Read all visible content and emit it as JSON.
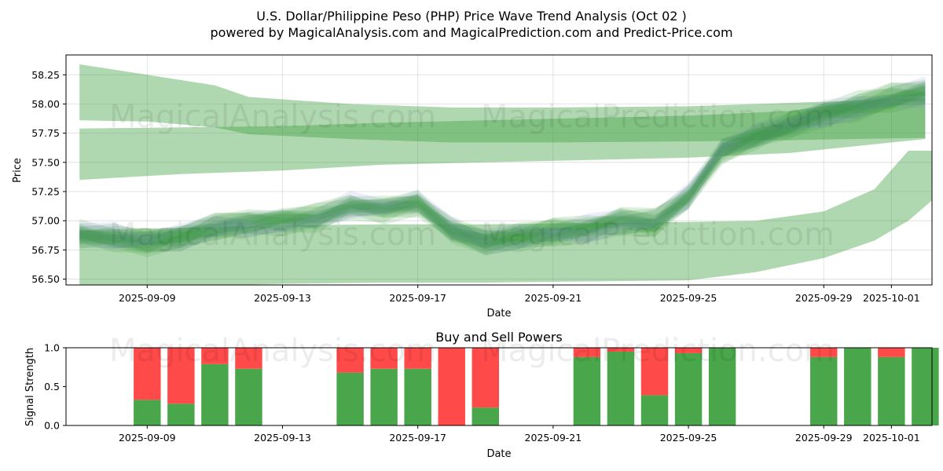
{
  "chart_title_line1": "U.S. Dollar/Philippine Peso (PHP) Price Wave Trend Analysis (Oct 02 )",
  "chart_title_line2": "powered by MagicalAnalysis.com and MagicalPrediction.com and Predict-Price.com",
  "watermarks": [
    "MagicalAnalysis.com",
    "MagicalPrediction.com"
  ],
  "colors": {
    "green_band": "#3a9e3a",
    "blue_band": "#8080e6",
    "buy": "#4aa64a",
    "sell": "#ff4a4a"
  },
  "chart_data": [
    {
      "type": "area",
      "title": "",
      "xlabel": "Date",
      "ylabel": "Price",
      "xlim_days": [
        -0.4,
        25.2
      ],
      "ylim": [
        56.45,
        58.42
      ],
      "x_ticks": [
        {
          "day": 2,
          "label": "2025-09-09"
        },
        {
          "day": 6,
          "label": "2025-09-13"
        },
        {
          "day": 10,
          "label": "2025-09-17"
        },
        {
          "day": 14,
          "label": "2025-09-21"
        },
        {
          "day": 18,
          "label": "2025-09-25"
        },
        {
          "day": 22,
          "label": "2025-09-29"
        },
        {
          "day": 24,
          "label": "2025-10-01"
        }
      ],
      "y_ticks": [
        56.5,
        56.75,
        57.0,
        57.25,
        57.5,
        57.75,
        58.0,
        58.25
      ],
      "y_tick_labels": [
        "56.50",
        "56.75",
        "57.00",
        "57.25",
        "57.50",
        "57.75",
        "58.00",
        "58.25"
      ],
      "wide_bands": [
        {
          "name": "upper-band-a",
          "x": [
            0,
            2,
            4,
            5,
            8,
            11,
            14,
            18,
            21,
            25
          ],
          "y": [
            58.1,
            58.05,
            57.98,
            57.9,
            57.85,
            57.82,
            57.82,
            57.83,
            57.85,
            57.88
          ],
          "half_width": [
            0.24,
            0.2,
            0.18,
            0.16,
            0.15,
            0.15,
            0.15,
            0.15,
            0.16,
            0.17
          ]
        },
        {
          "name": "upper-band-b",
          "x": [
            0,
            3,
            6,
            9,
            12,
            15,
            18,
            21,
            25
          ],
          "y": [
            57.57,
            57.6,
            57.62,
            57.66,
            57.68,
            57.7,
            57.72,
            57.76,
            57.9
          ],
          "half_width": [
            0.22,
            0.2,
            0.19,
            0.18,
            0.18,
            0.18,
            0.18,
            0.18,
            0.2
          ]
        },
        {
          "name": "lower-band",
          "x": [
            0,
            3,
            6,
            9,
            12,
            15,
            18,
            20,
            22,
            23.5,
            24.5,
            25.3
          ],
          "y": [
            56.68,
            56.69,
            56.71,
            56.72,
            56.72,
            56.73,
            56.74,
            56.78,
            56.88,
            57.05,
            57.3,
            57.4
          ],
          "half_width": [
            0.24,
            0.25,
            0.25,
            0.25,
            0.25,
            0.25,
            0.25,
            0.22,
            0.2,
            0.22,
            0.3,
            0.2
          ]
        }
      ],
      "wave_center": {
        "x": [
          0,
          1,
          2,
          3,
          4,
          5,
          6,
          7,
          8,
          9,
          10,
          11,
          12,
          13,
          14,
          15,
          16,
          17,
          18,
          19,
          20,
          21,
          22,
          23,
          24,
          25
        ],
        "y": [
          56.88,
          56.85,
          56.82,
          56.86,
          56.95,
          56.98,
          57.0,
          57.02,
          57.12,
          57.1,
          57.15,
          56.92,
          56.82,
          56.86,
          56.9,
          56.93,
          57.0,
          56.98,
          57.2,
          57.6,
          57.72,
          57.82,
          57.92,
          57.98,
          58.05,
          58.1
        ]
      },
      "wave_lines": 16
    },
    {
      "type": "bar",
      "title": "Buy and Sell Powers",
      "xlabel": "Date",
      "ylabel": "Signal Strength",
      "ylim": [
        0,
        1
      ],
      "y_ticks": [
        0.0,
        0.5,
        1.0
      ],
      "y_tick_labels": [
        "0.0",
        "0.5",
        "1.0"
      ],
      "x_ticks": [
        {
          "day": 2,
          "label": "2025-09-09"
        },
        {
          "day": 6,
          "label": "2025-09-13"
        },
        {
          "day": 10,
          "label": "2025-09-17"
        },
        {
          "day": 14,
          "label": "2025-09-21"
        },
        {
          "day": 18,
          "label": "2025-09-25"
        },
        {
          "day": 22,
          "label": "2025-09-29"
        },
        {
          "day": 24,
          "label": "2025-10-01"
        }
      ],
      "series": [
        {
          "name": "Buy",
          "days": [
            2,
            3,
            4,
            5,
            8,
            9,
            10,
            11,
            12,
            15,
            16,
            17,
            18,
            19,
            22,
            23,
            24,
            25
          ],
          "values": [
            0.33,
            0.28,
            0.79,
            0.73,
            0.68,
            0.73,
            0.73,
            0.0,
            0.23,
            0.88,
            0.95,
            0.39,
            0.93,
            1.0,
            0.88,
            1.0,
            0.88,
            1.0
          ]
        },
        {
          "name": "Sell",
          "days": [
            2,
            3,
            4,
            5,
            8,
            9,
            10,
            11,
            12,
            15,
            16,
            17,
            18,
            19,
            22,
            23,
            24,
            25
          ],
          "values": [
            0.67,
            0.72,
            0.21,
            0.27,
            0.32,
            0.27,
            0.27,
            1.0,
            0.77,
            0.12,
            0.05,
            0.61,
            0.07,
            0.0,
            0.12,
            0.0,
            0.12,
            0.0
          ]
        }
      ]
    }
  ]
}
